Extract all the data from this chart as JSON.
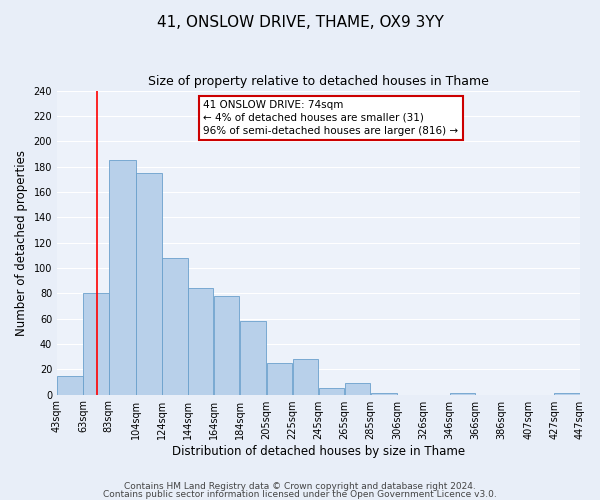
{
  "title": "41, ONSLOW DRIVE, THAME, OX9 3YY",
  "subtitle": "Size of property relative to detached houses in Thame",
  "xlabel": "Distribution of detached houses by size in Thame",
  "ylabel": "Number of detached properties",
  "bin_labels": [
    "43sqm",
    "63sqm",
    "83sqm",
    "104sqm",
    "124sqm",
    "144sqm",
    "164sqm",
    "184sqm",
    "205sqm",
    "225sqm",
    "245sqm",
    "265sqm",
    "285sqm",
    "306sqm",
    "326sqm",
    "346sqm",
    "366sqm",
    "386sqm",
    "407sqm",
    "427sqm",
    "447sqm"
  ],
  "bin_edges": [
    43,
    63,
    83,
    104,
    124,
    144,
    164,
    184,
    205,
    225,
    245,
    265,
    285,
    306,
    326,
    346,
    366,
    386,
    407,
    427,
    447
  ],
  "bar_heights": [
    15,
    80,
    185,
    175,
    108,
    84,
    78,
    58,
    25,
    28,
    5,
    9,
    1,
    0,
    0,
    1,
    0,
    0,
    0,
    1
  ],
  "bar_color": "#b8d0ea",
  "bar_edge_color": "#6aa0cc",
  "red_line_x": 74,
  "ylim": [
    0,
    240
  ],
  "yticks": [
    0,
    20,
    40,
    60,
    80,
    100,
    120,
    140,
    160,
    180,
    200,
    220,
    240
  ],
  "annotation_title": "41 ONSLOW DRIVE: 74sqm",
  "annotation_line1": "← 4% of detached houses are smaller (31)",
  "annotation_line2": "96% of semi-detached houses are larger (816) →",
  "annotation_box_color": "#ffffff",
  "annotation_box_edge_color": "#cc0000",
  "footer_line1": "Contains HM Land Registry data © Crown copyright and database right 2024.",
  "footer_line2": "Contains public sector information licensed under the Open Government Licence v3.0.",
  "bg_color": "#e8eef8",
  "plot_bg_color": "#edf2fa",
  "grid_color": "#ffffff",
  "title_fontsize": 11,
  "subtitle_fontsize": 9,
  "label_fontsize": 8.5,
  "tick_fontsize": 7,
  "footer_fontsize": 6.5,
  "annot_fontsize": 7.5
}
